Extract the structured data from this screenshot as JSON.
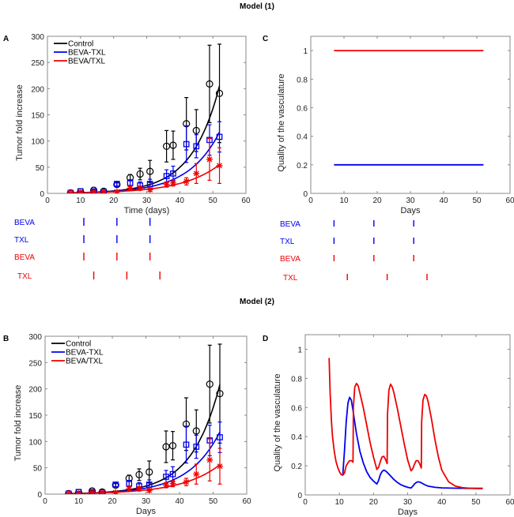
{
  "figure": {
    "row_titles": [
      "Model (1)",
      "Model (2)"
    ]
  },
  "colors": {
    "control": "#000000",
    "seq": "#0000ee",
    "conc": "#ee0000",
    "frame": "#888888"
  },
  "chart_data": [
    {
      "id": "A",
      "panel_letter": "A",
      "type": "line",
      "title": "",
      "xlabel": "Time (days)",
      "ylabel": "Tumor fold increase",
      "xlim": [
        0,
        60
      ],
      "ylim": [
        0,
        300
      ],
      "xticks": [
        0,
        10,
        20,
        30,
        40,
        50,
        60
      ],
      "yticks": [
        0,
        50,
        100,
        150,
        200,
        250,
        300
      ],
      "legend": {
        "position": "top-left",
        "entries": [
          "Control",
          "BEVA-TXL",
          "BEVA/TXL"
        ]
      },
      "data_series": [
        {
          "name": "Control",
          "color": "control",
          "marker": "circle",
          "x": [
            7,
            10,
            14,
            17,
            21,
            25,
            28,
            31,
            36,
            38,
            42,
            45,
            49,
            52
          ],
          "y": [
            1,
            3,
            6,
            4,
            17,
            30,
            37,
            42,
            90,
            92,
            133,
            120,
            209,
            191
          ],
          "err": [
            1,
            1,
            1,
            1,
            3,
            6,
            11,
            21,
            30,
            27,
            50,
            40,
            74,
            94
          ]
        },
        {
          "name": "BEVA-TXL",
          "color": "seq",
          "marker": "square",
          "x": [
            7,
            10,
            14,
            17,
            21,
            25,
            28,
            31,
            36,
            38,
            42,
            45,
            49,
            52
          ],
          "y": [
            1,
            4,
            4,
            3,
            18,
            20,
            15,
            18,
            33,
            38,
            94,
            90,
            102,
            108
          ],
          "err": [
            1,
            1,
            1,
            1,
            4,
            6,
            7,
            9,
            12,
            14,
            35,
            22,
            29,
            29
          ]
        },
        {
          "name": "BEVA/TXL",
          "color": "conc",
          "marker": "star",
          "x": [
            7,
            10,
            14,
            17,
            21,
            25,
            28,
            31,
            36,
            38,
            42,
            45,
            49,
            52
          ],
          "y": [
            1,
            1,
            3,
            3,
            3,
            10,
            10,
            7,
            17,
            20,
            23,
            38,
            65,
            53
          ],
          "err": [
            1,
            1,
            1,
            1,
            2,
            4,
            4,
            3,
            5,
            6,
            7,
            19,
            40,
            34
          ]
        }
      ],
      "fit_curves": [
        {
          "name": "Control fit",
          "color": "control",
          "x0": 7,
          "x1": 52,
          "y0": 1,
          "y1": 205
        },
        {
          "name": "BEVA-TXL fit",
          "color": "seq",
          "x0": 7,
          "x1": 52,
          "y0": 1,
          "y1": 117
        },
        {
          "name": "BEVA/TXL fit",
          "color": "conc",
          "x0": 7,
          "x1": 52,
          "y0": 1,
          "y1": 55
        }
      ],
      "schedule": [
        {
          "label": "BEVA",
          "color": "seq",
          "days": [
            11,
            21,
            31
          ]
        },
        {
          "label": "TXL",
          "color": "seq",
          "days": [
            11,
            21,
            31
          ]
        },
        {
          "label": "BEVA",
          "color": "conc",
          "days": [
            11,
            21,
            31
          ]
        },
        {
          "label": "TXL",
          "color": "conc",
          "days": [
            14,
            24,
            34
          ]
        }
      ]
    },
    {
      "id": "C",
      "panel_letter": "C",
      "type": "line",
      "title": "",
      "xlabel": "Days",
      "ylabel": "Quality of the vasculature",
      "xlim": [
        0,
        60
      ],
      "ylim": [
        0,
        1.1
      ],
      "xticks": [
        0,
        10,
        20,
        30,
        40,
        50,
        60
      ],
      "yticks": [
        0,
        0.2,
        0.4,
        0.6,
        0.8,
        1
      ],
      "ytick_labels": [
        "0",
        "0.2",
        "0.4",
        "0.6",
        "0.8",
        "1"
      ],
      "series": [
        {
          "name": "BEVA/TXL",
          "color": "conc",
          "x": [
            7,
            52
          ],
          "y": [
            1,
            1
          ]
        },
        {
          "name": "BEVA-TXL",
          "color": "seq",
          "x": [
            7,
            52
          ],
          "y": [
            0.2,
            0.2
          ]
        }
      ],
      "schedule": [
        {
          "label": "BEVA",
          "color": "seq",
          "days": [
            7,
            19,
            31
          ]
        },
        {
          "label": "TXL",
          "color": "seq",
          "days": [
            7,
            19,
            31
          ]
        },
        {
          "label": "BEVA",
          "color": "conc",
          "days": [
            7,
            19,
            31
          ]
        },
        {
          "label": "TXL",
          "color": "conc",
          "days": [
            11,
            23,
            35
          ]
        }
      ]
    },
    {
      "id": "B",
      "panel_letter": "B",
      "type": "line",
      "title": "",
      "xlabel": "Days",
      "ylabel": "Tumor fold increase",
      "xlim": [
        0,
        60
      ],
      "ylim": [
        0,
        300
      ],
      "xticks": [
        0,
        10,
        20,
        30,
        40,
        50,
        60
      ],
      "yticks": [
        0,
        50,
        100,
        150,
        200,
        250,
        300
      ],
      "legend": {
        "position": "top-left",
        "entries": [
          "Control",
          "BEVA-TXL",
          "BEVA/TXL"
        ]
      },
      "data_series": [
        {
          "name": "Control",
          "color": "control",
          "marker": "circle",
          "x": [
            7,
            10,
            14,
            17,
            21,
            25,
            28,
            31,
            36,
            38,
            42,
            45,
            49,
            52
          ],
          "y": [
            1,
            3,
            6,
            4,
            17,
            30,
            37,
            42,
            90,
            92,
            133,
            120,
            209,
            191
          ],
          "err": [
            1,
            1,
            1,
            1,
            3,
            6,
            11,
            21,
            30,
            27,
            50,
            40,
            74,
            94
          ]
        },
        {
          "name": "BEVA-TXL",
          "color": "seq",
          "marker": "square",
          "x": [
            7,
            10,
            14,
            17,
            21,
            25,
            28,
            31,
            36,
            38,
            42,
            45,
            49,
            52
          ],
          "y": [
            1,
            4,
            4,
            3,
            18,
            20,
            15,
            18,
            33,
            38,
            94,
            90,
            102,
            108
          ],
          "err": [
            1,
            1,
            1,
            1,
            4,
            6,
            7,
            9,
            12,
            14,
            35,
            22,
            29,
            29
          ]
        },
        {
          "name": "BEVA/TXL",
          "color": "conc",
          "marker": "star",
          "x": [
            7,
            10,
            14,
            17,
            21,
            25,
            28,
            31,
            36,
            38,
            42,
            45,
            49,
            52
          ],
          "y": [
            1,
            1,
            3,
            3,
            3,
            10,
            10,
            7,
            17,
            20,
            23,
            38,
            65,
            53
          ],
          "err": [
            1,
            1,
            1,
            1,
            2,
            4,
            4,
            3,
            5,
            6,
            7,
            19,
            40,
            34
          ]
        }
      ],
      "fit_curves": [
        {
          "name": "Control fit",
          "color": "control",
          "x0": 7,
          "x1": 52,
          "y0": 1,
          "y1": 208
        },
        {
          "name": "BEVA-TXL fit",
          "color": "seq",
          "x0": 7,
          "x1": 52,
          "y0": 1,
          "y1": 118
        },
        {
          "name": "BEVA/TXL fit",
          "color": "conc",
          "x0": 7,
          "x1": 52,
          "y0": 1,
          "y1": 56
        }
      ]
    },
    {
      "id": "D",
      "panel_letter": "D",
      "type": "line",
      "title": "",
      "xlabel": "Days",
      "ylabel": "Quality of the vasculature",
      "xlim": [
        0,
        60
      ],
      "ylim": [
        0,
        1.1
      ],
      "xticks": [
        0,
        10,
        20,
        30,
        40,
        50,
        60
      ],
      "yticks": [
        0,
        0.2,
        0.4,
        0.6,
        0.8,
        1
      ],
      "ytick_labels": [
        "0",
        "0.2",
        "0.4",
        "0.6",
        "0.8",
        "1"
      ],
      "series": [
        {
          "name": "BEVA-TXL",
          "color": "seq",
          "x": [
            11,
            11.5,
            12,
            12.5,
            13,
            13.5,
            14,
            15,
            16,
            17,
            18,
            19,
            20,
            21,
            21.5,
            22,
            22.5,
            23,
            23.5,
            24,
            25,
            26,
            27,
            28,
            29,
            30,
            31,
            31.5,
            32,
            32.5,
            33,
            33.5,
            34,
            35,
            36,
            38,
            40,
            44,
            48,
            52
          ],
          "y": [
            0.14,
            0.3,
            0.5,
            0.63,
            0.67,
            0.65,
            0.58,
            0.42,
            0.3,
            0.22,
            0.16,
            0.12,
            0.095,
            0.075,
            0.1,
            0.14,
            0.16,
            0.17,
            0.165,
            0.155,
            0.13,
            0.105,
            0.085,
            0.07,
            0.06,
            0.052,
            0.047,
            0.06,
            0.075,
            0.085,
            0.09,
            0.088,
            0.083,
            0.07,
            0.06,
            0.052,
            0.048,
            0.046,
            0.045,
            0.045
          ]
        },
        {
          "name": "BEVA/TXL",
          "color": "conc",
          "x": [
            7,
            7.3,
            7.7,
            8,
            8.5,
            9,
            9.5,
            10,
            10.5,
            11,
            11.5,
            12,
            12.5,
            13,
            13.5,
            14,
            14.1,
            14.5,
            15,
            15.5,
            16,
            17,
            18,
            19,
            20,
            21,
            21.5,
            22,
            22.5,
            23,
            23.5,
            24,
            24.1,
            24.5,
            25,
            25.5,
            26,
            27,
            28,
            29,
            30,
            31,
            31.5,
            32,
            32.5,
            33,
            33.5,
            34,
            34.1,
            34.5,
            35,
            35.5,
            36,
            37,
            38,
            39,
            40,
            42,
            44,
            46,
            48,
            50,
            52
          ],
          "y": [
            0.94,
            0.7,
            0.5,
            0.4,
            0.3,
            0.23,
            0.19,
            0.16,
            0.14,
            0.135,
            0.15,
            0.2,
            0.22,
            0.235,
            0.235,
            0.225,
            0.6,
            0.74,
            0.765,
            0.75,
            0.7,
            0.6,
            0.48,
            0.36,
            0.26,
            0.175,
            0.19,
            0.23,
            0.26,
            0.265,
            0.245,
            0.215,
            0.55,
            0.72,
            0.76,
            0.74,
            0.7,
            0.59,
            0.47,
            0.35,
            0.24,
            0.165,
            0.18,
            0.21,
            0.235,
            0.235,
            0.215,
            0.185,
            0.5,
            0.65,
            0.69,
            0.68,
            0.64,
            0.52,
            0.38,
            0.26,
            0.17,
            0.09,
            0.06,
            0.05,
            0.046,
            0.044,
            0.043
          ]
        }
      ]
    }
  ]
}
